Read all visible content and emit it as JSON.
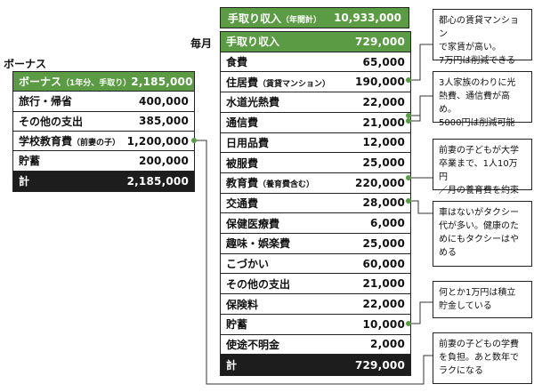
{
  "header": {
    "annual_label": "手取り収入",
    "annual_sub": "（年間計）",
    "annual_value": "10,933,000"
  },
  "labels": {
    "monthly": "毎月",
    "bonus": "ボーナス"
  },
  "monthly": {
    "rows": [
      {
        "label": "手取り収入",
        "sub": "",
        "value": "729,000"
      },
      {
        "label": "食費",
        "sub": "",
        "value": "65,000"
      },
      {
        "label": "住居費",
        "sub": "（賃貸マンション）",
        "value": "190,000"
      },
      {
        "label": "水道光熱費",
        "sub": "",
        "value": "22,000"
      },
      {
        "label": "通信費",
        "sub": "",
        "value": "21,000"
      },
      {
        "label": "日用品費",
        "sub": "",
        "value": "12,000"
      },
      {
        "label": "被服費",
        "sub": "",
        "value": "25,000"
      },
      {
        "label": "教育費",
        "sub": "（養育費含む）",
        "value": "220,000"
      },
      {
        "label": "交通費",
        "sub": "",
        "value": "28,000"
      },
      {
        "label": "保健医療費",
        "sub": "",
        "value": "6,000"
      },
      {
        "label": "趣味・娯楽費",
        "sub": "",
        "value": "25,000"
      },
      {
        "label": "こづかい",
        "sub": "",
        "value": "60,000"
      },
      {
        "label": "その他の支出",
        "sub": "",
        "value": "21,000"
      },
      {
        "label": "保険料",
        "sub": "",
        "value": "22,000"
      },
      {
        "label": "貯蓄",
        "sub": "",
        "value": "10,000"
      },
      {
        "label": "使途不明金",
        "sub": "",
        "value": "2,000"
      },
      {
        "label": "計",
        "sub": "",
        "value": "729,000"
      }
    ]
  },
  "bonus": {
    "rows": [
      {
        "label": "ボーナス",
        "sub": "（1年分、手取り）",
        "value": "2,185,000"
      },
      {
        "label": "旅行・帰省",
        "sub": "",
        "value": "400,000"
      },
      {
        "label": "その他の支出",
        "sub": "",
        "value": "385,000"
      },
      {
        "label": "学校教育費",
        "sub": "（前妻の子）",
        "value": "1,200,000"
      },
      {
        "label": "貯蓄",
        "sub": "",
        "value": "200,000"
      },
      {
        "label": "計",
        "sub": "",
        "value": "2,185,000"
      }
    ]
  },
  "notes": [
    "都心の賃貸マンション\nで家賃が高い。\n7万円は削減できる",
    "3人家族のわりに光\n熱費、通信費が高め。\n5000円は削減可能",
    "前妻の子どもが大学\n卒業まで、1人10万円\n／月の養育費を約束",
    "車はないがタクシー\n代が多い。健康のた\nめにもタクシーはや\nめる",
    "何とか1万円は積立\n貯金している",
    "前妻の子どもの学費\nを負担。あと数年で\nラクになる"
  ],
  "colors": {
    "green": "#5a9b43",
    "dark": "#1d1d1d"
  }
}
